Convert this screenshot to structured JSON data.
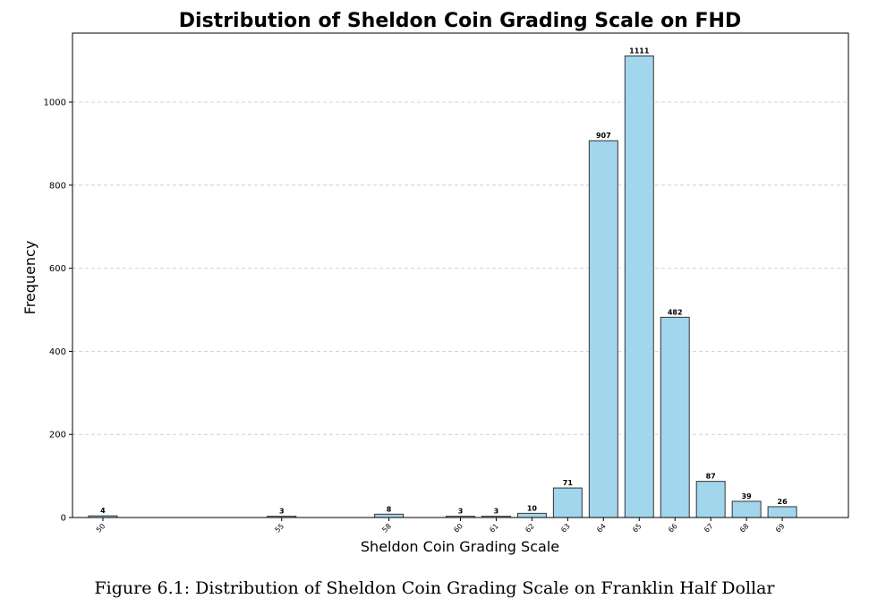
{
  "chart_data": {
    "type": "bar",
    "title": "Distribution of Sheldon Coin Grading Scale on FHD",
    "xlabel": "Sheldon Coin Grading Scale",
    "ylabel": "Frequency",
    "x": [
      50,
      55,
      58,
      60,
      61,
      62,
      63,
      64,
      65,
      66,
      67,
      68,
      69
    ],
    "categories": [
      "50",
      "55",
      "58",
      "60",
      "61",
      "62",
      "63",
      "64",
      "65",
      "66",
      "67",
      "68",
      "69"
    ],
    "values": [
      4,
      3,
      8,
      3,
      3,
      10,
      71,
      907,
      1111,
      482,
      87,
      39,
      26
    ],
    "xlim": [
      49.15,
      70.85
    ],
    "ylim": [
      0,
      1166
    ],
    "yticks": [
      0,
      200,
      400,
      600,
      800,
      1000
    ],
    "grid": "y",
    "bar_color": "#a2d6ed",
    "bar_edge_color": "#333333"
  },
  "caption": "Figure 6.1: Distribution of Sheldon Coin Grading Scale on Franklin Half Dollar"
}
